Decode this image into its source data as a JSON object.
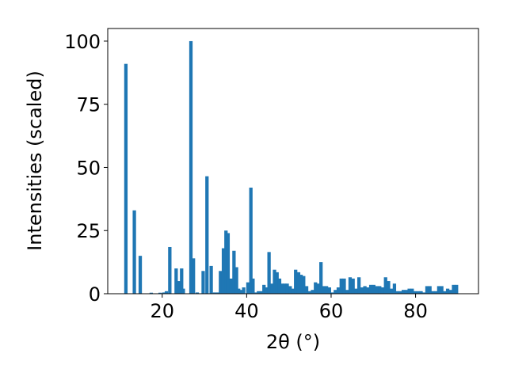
{
  "chart_data": {
    "type": "bar",
    "xlabel": "2θ (°)",
    "ylabel": "Intensities (scaled)",
    "xlim": [
      7.1,
      94.9
    ],
    "ylim": [
      0,
      105
    ],
    "xticks": [
      20,
      40,
      60,
      80
    ],
    "yticks": [
      0,
      25,
      50,
      75,
      100
    ],
    "grid": false,
    "bar_width": 0.8,
    "color": "#1f77b4",
    "x": [
      11.4,
      13.4,
      14.8,
      17.4,
      19.5,
      20.4,
      21.0,
      21.8,
      23.3,
      24.0,
      24.6,
      25.0,
      26.8,
      27.4,
      28.3,
      29.7,
      30.6,
      31.6,
      32.4,
      33.2,
      33.8,
      34.5,
      35.1,
      35.6,
      36.3,
      37.0,
      37.6,
      38.1,
      38.6,
      39.3,
      40.3,
      41.0,
      41.5,
      42.2,
      42.8,
      43.5,
      44.1,
      44.6,
      45.3,
      46.0,
      46.6,
      47.2,
      47.8,
      48.4,
      49.0,
      49.6,
      50.3,
      51.0,
      51.6,
      52.3,
      52.9,
      53.5,
      54.2,
      54.9,
      55.6,
      56.3,
      57.0,
      57.6,
      58.2,
      58.9,
      59.6,
      60.3,
      61.0,
      61.7,
      62.4,
      63.1,
      63.8,
      64.5,
      65.2,
      65.9,
      66.6,
      67.3,
      68.0,
      68.7,
      69.4,
      70.1,
      70.8,
      71.5,
      72.2,
      72.9,
      73.6,
      74.3,
      75.0,
      75.7,
      76.4,
      77.1,
      77.8,
      78.5,
      79.2,
      79.9,
      80.6,
      81.3,
      82.0,
      82.7,
      83.4,
      84.1,
      84.8,
      85.5,
      86.2,
      86.9,
      87.6,
      88.3,
      89.0,
      89.7
    ],
    "values": [
      91,
      33,
      15,
      0.4,
      0.4,
      0.5,
      1,
      18.5,
      10,
      5,
      10,
      2,
      100,
      14,
      0.5,
      9,
      46.5,
      11,
      0.5,
      0.5,
      9,
      18,
      25,
      24,
      6,
      17,
      10.5,
      2,
      1.5,
      2.5,
      4.5,
      42,
      6,
      0.5,
      1,
      1,
      3.5,
      2.5,
      16.5,
      4,
      9.5,
      8.5,
      6,
      4,
      4,
      4,
      3,
      2,
      9.5,
      8.5,
      7.5,
      7,
      3,
      1,
      1.5,
      4.5,
      4,
      12.5,
      3,
      3,
      2.5,
      0.5,
      1.5,
      2.5,
      6,
      6,
      1.5,
      6.5,
      6,
      2,
      6.5,
      2.5,
      3,
      2.5,
      3.5,
      3.5,
      3,
      3,
      2.5,
      6.5,
      5,
      2,
      4,
      1,
      1,
      1.5,
      1.5,
      2,
      2,
      1,
      1,
      1,
      0.5,
      3,
      3,
      1,
      1,
      3,
      3,
      1,
      2,
      1.5,
      3.5,
      3.5
    ]
  }
}
